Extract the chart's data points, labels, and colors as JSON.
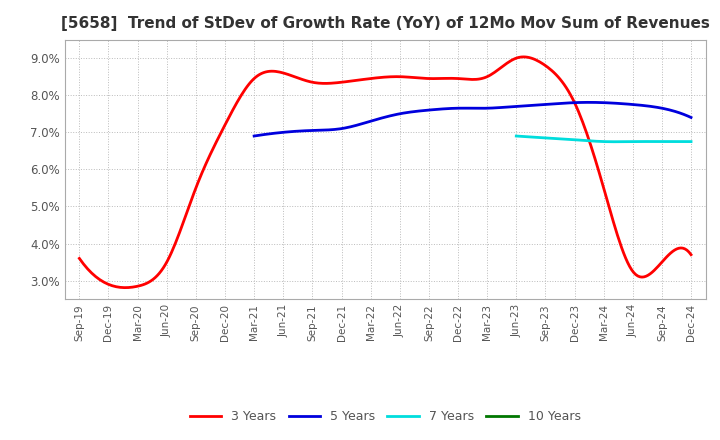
{
  "title": "[5658]  Trend of StDev of Growth Rate (YoY) of 12Mo Mov Sum of Revenues",
  "title_fontsize": 11,
  "ylim": [
    2.5,
    9.5
  ],
  "yticks": [
    3.0,
    4.0,
    5.0,
    6.0,
    7.0,
    8.0,
    9.0
  ],
  "x_labels": [
    "Sep-19",
    "Dec-19",
    "Mar-20",
    "Jun-20",
    "Sep-20",
    "Dec-20",
    "Mar-21",
    "Jun-21",
    "Sep-21",
    "Dec-21",
    "Mar-22",
    "Jun-22",
    "Sep-22",
    "Dec-22",
    "Mar-23",
    "Jun-23",
    "Sep-23",
    "Dec-23",
    "Mar-24",
    "Jun-24",
    "Sep-24",
    "Dec-24"
  ],
  "series": {
    "3 Years": {
      "color": "#ff0000",
      "linewidth": 2.0,
      "values": [
        3.6,
        2.9,
        2.85,
        3.5,
        5.5,
        7.2,
        8.45,
        8.6,
        8.35,
        8.35,
        8.45,
        8.5,
        8.45,
        8.45,
        8.5,
        9.0,
        8.8,
        7.8,
        5.5,
        3.25,
        3.5,
        3.7
      ]
    },
    "5 Years": {
      "color": "#0000dd",
      "linewidth": 2.0,
      "values": [
        null,
        null,
        null,
        null,
        null,
        null,
        6.9,
        7.0,
        7.05,
        7.1,
        7.3,
        7.5,
        7.6,
        7.65,
        7.65,
        7.7,
        7.75,
        7.8,
        7.8,
        7.75,
        7.65,
        7.4
      ]
    },
    "7 Years": {
      "color": "#00dddd",
      "linewidth": 2.0,
      "values": [
        null,
        null,
        null,
        null,
        null,
        null,
        null,
        null,
        null,
        null,
        null,
        null,
        null,
        null,
        null,
        6.9,
        6.85,
        6.8,
        6.75,
        6.75,
        6.75,
        6.75
      ]
    },
    "10 Years": {
      "color": "#007700",
      "linewidth": 2.0,
      "values": [
        null,
        null,
        null,
        null,
        null,
        null,
        null,
        null,
        null,
        null,
        null,
        null,
        null,
        null,
        null,
        null,
        null,
        null,
        null,
        null,
        null,
        null
      ]
    }
  },
  "legend_ncol": 4,
  "background_color": "#ffffff",
  "grid_color": "#bbbbbb",
  "grid_linestyle": "dotted"
}
